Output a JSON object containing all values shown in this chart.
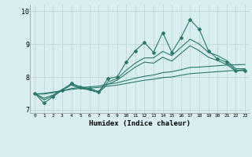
{
  "x_values": [
    0,
    1,
    2,
    3,
    4,
    5,
    6,
    7,
    8,
    9,
    10,
    11,
    12,
    13,
    14,
    15,
    16,
    17,
    18,
    19,
    20,
    21,
    22,
    23
  ],
  "line_main": [
    7.5,
    7.2,
    7.4,
    7.6,
    7.8,
    7.7,
    7.65,
    7.55,
    7.95,
    8.0,
    8.45,
    8.8,
    9.05,
    8.75,
    9.35,
    8.75,
    9.2,
    9.75,
    9.45,
    8.8,
    8.55,
    8.45,
    8.2,
    8.2
  ],
  "line_trend1": [
    7.5,
    7.35,
    7.45,
    7.62,
    7.78,
    7.68,
    7.62,
    7.55,
    7.85,
    7.95,
    8.2,
    8.42,
    8.58,
    8.58,
    8.78,
    8.65,
    8.9,
    9.15,
    9.0,
    8.75,
    8.65,
    8.5,
    8.25,
    8.25
  ],
  "line_trend2": [
    7.5,
    7.3,
    7.42,
    7.6,
    7.75,
    7.65,
    7.6,
    7.52,
    7.78,
    7.9,
    8.1,
    8.3,
    8.45,
    8.42,
    8.6,
    8.48,
    8.72,
    8.95,
    8.8,
    8.6,
    8.5,
    8.38,
    8.18,
    8.2
  ],
  "line_trend3": [
    7.48,
    7.48,
    7.52,
    7.58,
    7.65,
    7.68,
    7.7,
    7.72,
    7.78,
    7.82,
    7.89,
    7.96,
    8.02,
    8.06,
    8.13,
    8.16,
    8.22,
    8.29,
    8.3,
    8.32,
    8.34,
    8.36,
    8.37,
    8.38
  ],
  "line_flat": [
    7.48,
    7.5,
    7.54,
    7.58,
    7.62,
    7.65,
    7.66,
    7.68,
    7.72,
    7.75,
    7.8,
    7.85,
    7.9,
    7.93,
    7.98,
    8.0,
    8.05,
    8.1,
    8.12,
    8.14,
    8.16,
    8.18,
    8.2,
    8.22
  ],
  "bg_color": "#d8eef0",
  "grid_color": "#c0d8da",
  "line_color": "#2a7a6a",
  "xlabel": "Humidex (Indice chaleur)",
  "ylim": [
    6.9,
    10.2
  ],
  "xlim": [
    -0.5,
    23.5
  ],
  "yticks": [
    7,
    8,
    9,
    10
  ],
  "xticks": [
    0,
    1,
    2,
    3,
    4,
    5,
    6,
    7,
    8,
    9,
    10,
    11,
    12,
    13,
    14,
    15,
    16,
    17,
    18,
    19,
    20,
    21,
    22,
    23
  ]
}
